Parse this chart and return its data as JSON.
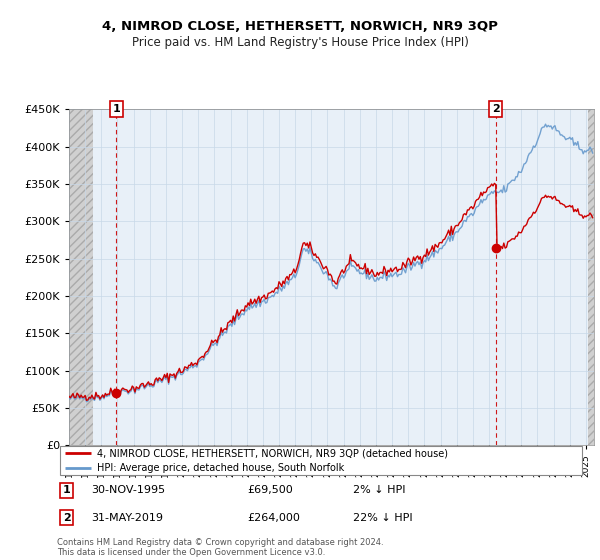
{
  "title1": "4, NIMROD CLOSE, HETHERSETT, NORWICH, NR9 3QP",
  "title2": "Price paid vs. HM Land Registry's House Price Index (HPI)",
  "footer": "Contains HM Land Registry data © Crown copyright and database right 2024.\nThis data is licensed under the Open Government Licence v3.0.",
  "legend_line1": "4, NIMROD CLOSE, HETHERSETT, NORWICH, NR9 3QP (detached house)",
  "legend_line2": "HPI: Average price, detached house, South Norfolk",
  "annotation1_date": "30-NOV-1995",
  "annotation1_price": "£69,500",
  "annotation1_pct": "2% ↓ HPI",
  "annotation1_year": 1995.92,
  "annotation1_value": 69500,
  "annotation2_date": "31-MAY-2019",
  "annotation2_price": "£264,000",
  "annotation2_pct": "22% ↓ HPI",
  "annotation2_year": 2019.42,
  "annotation2_value": 264000,
  "price_color": "#cc0000",
  "hpi_color": "#6699cc",
  "grid_color": "#c8d8e8",
  "bg_color": "#e8f0f8",
  "hatch_color": "#c8c8c8",
  "ylim": [
    0,
    450000
  ],
  "xlim_start": 1993.0,
  "xlim_end": 2025.5
}
